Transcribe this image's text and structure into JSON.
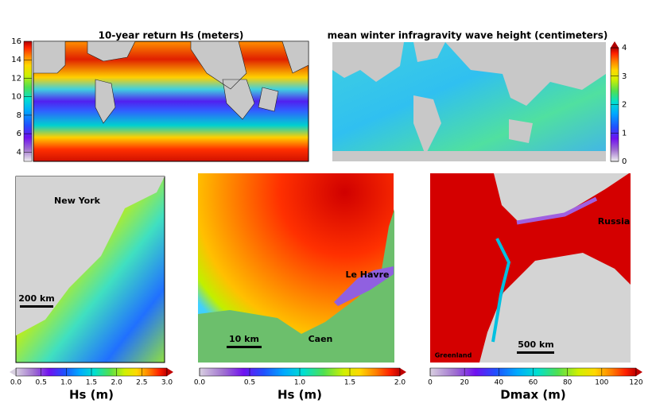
{
  "panels": [
    {
      "title": "10-year return Hs (meters)",
      "colorbar": {
        "lim": [
          3,
          16
        ],
        "ticks": [
          4,
          6,
          8,
          10,
          12,
          14,
          16
        ]
      }
    },
    {
      "title": "mean winter infragravity wave height (centimeters)",
      "colorbar": {
        "lim": [
          0,
          4
        ],
        "ticks": [
          0,
          1,
          2,
          3,
          4
        ]
      }
    },
    {
      "labels": [
        "New York"
      ],
      "scale_bar": "200 km",
      "colorbar": {
        "label": "Hs (m)",
        "lim": [
          0,
          3
        ],
        "ticks": [
          {
            "value": 0,
            "label": "0.0"
          },
          {
            "value": 0.5,
            "label": "0.5"
          },
          {
            "value": 1,
            "label": "1.0"
          },
          {
            "value": 1.5,
            "label": "1.5"
          },
          {
            "value": 2,
            "label": "2.0"
          },
          {
            "value": 2.5,
            "label": "2.5"
          },
          {
            "value": 3,
            "label": "3.0"
          }
        ]
      }
    },
    {
      "labels": [
        "Le Havre",
        "Caen"
      ],
      "scale_bar": "10 km",
      "colorbar": {
        "label": "Hs (m)",
        "lim": [
          0,
          2
        ],
        "ticks": [
          {
            "value": 0,
            "label": "0.0"
          },
          {
            "value": 0.5,
            "label": "0.5"
          },
          {
            "value": 1,
            "label": "1.0"
          },
          {
            "value": 1.5,
            "label": "1.5"
          },
          {
            "value": 2,
            "label": "2.0"
          }
        ]
      }
    },
    {
      "labels": [
        "Russia",
        "Greenland"
      ],
      "scale_bar": "500 km",
      "colorbar": {
        "label": "Dmax (m)",
        "lim": [
          0,
          120
        ],
        "ticks": [
          0,
          20,
          40,
          60,
          80,
          100,
          120
        ]
      }
    }
  ]
}
